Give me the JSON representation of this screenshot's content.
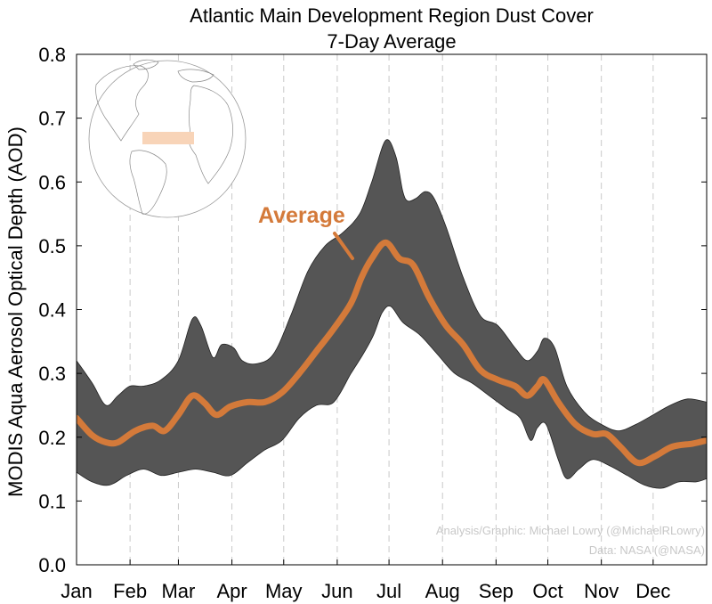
{
  "chart_data": {
    "type": "area",
    "title": "Atlantic Main Development Region Dust Cover",
    "subtitle": "7-Day Average",
    "xlabel": "",
    "ylabel": "MODIS Aqua Aerosol Optical Depth (AOD)",
    "ylim": [
      0,
      0.8
    ],
    "yticks": [
      "0.0",
      "0.1",
      "0.2",
      "0.3",
      "0.4",
      "0.5",
      "0.6",
      "0.7",
      "0.8"
    ],
    "xticks": [
      "Jan",
      "Feb",
      "Mar",
      "Apr",
      "May",
      "Jun",
      "Jul",
      "Aug",
      "Sep",
      "Oct",
      "Nov",
      "Dec"
    ],
    "grid": "vertical dashed at month starts",
    "annotation": "Average",
    "inset": "globe with Atlantic Main Development Region highlighted",
    "series": [
      {
        "name": "Average",
        "color": "#d47a3a",
        "x": [
          1,
          10,
          18,
          25,
          35,
          45,
          52,
          60,
          68,
          75,
          82,
          90,
          100,
          110,
          120,
          130,
          140,
          150,
          160,
          166,
          172,
          180,
          188,
          196,
          205,
          215,
          225,
          235,
          245,
          255,
          262,
          268,
          272,
          280,
          290,
          300,
          308,
          316,
          326,
          336,
          346,
          358,
          366
        ],
        "values": [
          0.23,
          0.203,
          0.192,
          0.192,
          0.21,
          0.218,
          0.21,
          0.235,
          0.265,
          0.254,
          0.235,
          0.248,
          0.255,
          0.255,
          0.27,
          0.3,
          0.335,
          0.37,
          0.41,
          0.45,
          0.48,
          0.505,
          0.48,
          0.47,
          0.42,
          0.375,
          0.345,
          0.305,
          0.29,
          0.28,
          0.265,
          0.28,
          0.29,
          0.255,
          0.22,
          0.205,
          0.205,
          0.185,
          0.16,
          0.17,
          0.185,
          0.19,
          0.195
        ]
      },
      {
        "name": "Upper bound",
        "color": "#555555",
        "x": [
          1,
          10,
          18,
          25,
          32,
          40,
          50,
          60,
          68,
          73,
          80,
          85,
          92,
          97,
          105,
          115,
          125,
          135,
          145,
          155,
          165,
          172,
          180,
          186,
          190,
          193,
          198,
          203,
          208,
          215,
          225,
          235,
          245,
          255,
          262,
          268,
          272,
          278,
          285,
          295,
          305,
          315,
          325,
          335,
          345,
          355,
          366
        ],
        "values": [
          0.32,
          0.285,
          0.25,
          0.265,
          0.28,
          0.28,
          0.29,
          0.32,
          0.385,
          0.375,
          0.325,
          0.345,
          0.34,
          0.32,
          0.315,
          0.33,
          0.39,
          0.46,
          0.5,
          0.52,
          0.55,
          0.6,
          0.665,
          0.64,
          0.585,
          0.57,
          0.575,
          0.585,
          0.575,
          0.53,
          0.45,
          0.39,
          0.375,
          0.34,
          0.32,
          0.335,
          0.355,
          0.34,
          0.28,
          0.24,
          0.22,
          0.21,
          0.22,
          0.235,
          0.25,
          0.26,
          0.255
        ]
      },
      {
        "name": "Lower bound",
        "color": "#555555",
        "x": [
          1,
          10,
          20,
          30,
          40,
          50,
          60,
          70,
          80,
          90,
          100,
          110,
          120,
          130,
          140,
          150,
          160,
          167,
          173,
          178,
          183,
          190,
          200,
          210,
          220,
          230,
          240,
          250,
          258,
          264,
          268,
          273,
          280,
          285,
          292,
          300,
          310,
          320,
          330,
          340,
          350,
          360,
          366
        ],
        "values": [
          0.145,
          0.13,
          0.125,
          0.14,
          0.15,
          0.14,
          0.145,
          0.15,
          0.145,
          0.14,
          0.16,
          0.18,
          0.195,
          0.23,
          0.25,
          0.255,
          0.3,
          0.33,
          0.36,
          0.395,
          0.405,
          0.38,
          0.36,
          0.33,
          0.3,
          0.285,
          0.265,
          0.245,
          0.23,
          0.195,
          0.215,
          0.22,
          0.165,
          0.135,
          0.15,
          0.165,
          0.155,
          0.14,
          0.125,
          0.12,
          0.13,
          0.13,
          0.135
        ]
      }
    ]
  },
  "credits": {
    "analysis": "Analysis/Graphic: Michael Lowry (@MichaelRLowry)",
    "data": "Data: NASA (@NASA)"
  },
  "colors": {
    "band": "#555555",
    "average": "#d47a3a",
    "region": "#f8d4b8",
    "credits": "#c8c8c8"
  }
}
